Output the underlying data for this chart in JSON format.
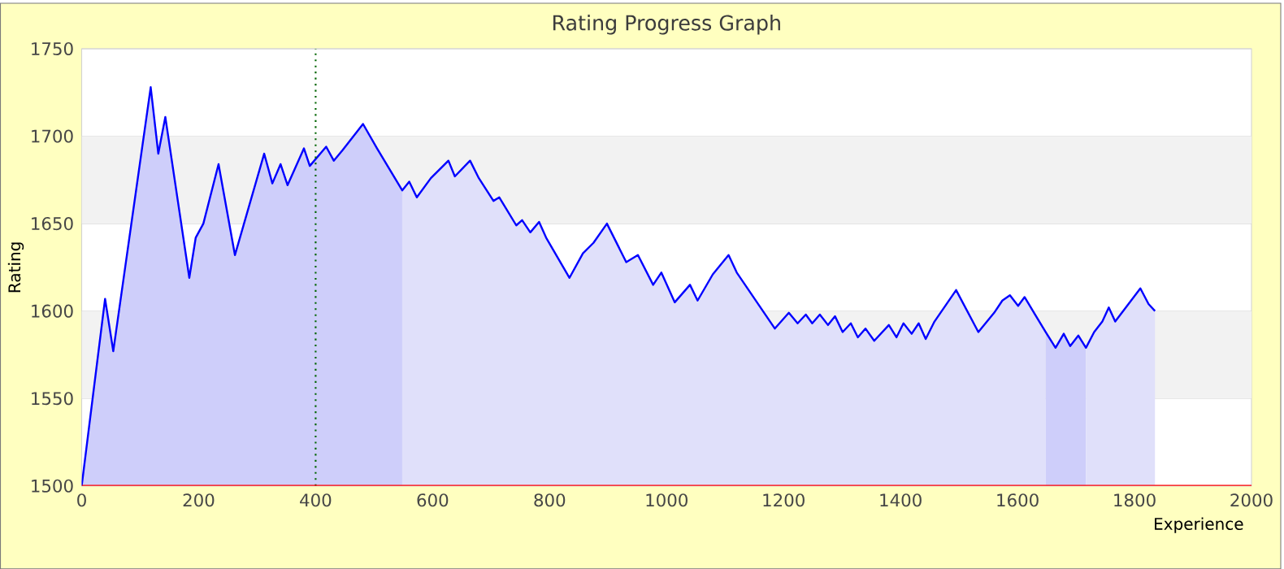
{
  "chart_data": {
    "type": "area",
    "title": "Rating Progress Graph",
    "xlabel": "Experience",
    "ylabel": "Rating",
    "series": [
      {
        "color": "#cecefa",
        "x": [
          0,
          40,
          54,
          118,
          131,
          143,
          184,
          195,
          208,
          234,
          262,
          312,
          326,
          340,
          352,
          380,
          390,
          418,
          431,
          446,
          481,
          505,
          548
        ],
        "values": [
          1500,
          1607,
          1577,
          1728,
          1690,
          1711,
          1619,
          1642,
          1650,
          1684,
          1632,
          1690,
          1673,
          1684,
          1672,
          1693,
          1683,
          1694,
          1686,
          1692,
          1707,
          1693,
          1669
        ]
      },
      {
        "color": "#e0e0fa",
        "x": [
          548,
          560,
          573,
          597,
          627,
          638,
          664,
          679,
          704,
          714,
          743,
          753,
          767,
          782,
          794,
          834,
          857,
          875,
          898,
          931,
          951,
          977,
          991,
          1014,
          1040,
          1053,
          1079,
          1106,
          1120,
          1185,
          1209,
          1224,
          1238,
          1249,
          1262,
          1276,
          1288,
          1301,
          1315,
          1327,
          1340,
          1355,
          1380,
          1393,
          1405,
          1419,
          1431,
          1443,
          1458,
          1495,
          1533,
          1560,
          1574,
          1587,
          1601,
          1612,
          1648
        ],
        "values": [
          1669,
          1674,
          1665,
          1676,
          1686,
          1677,
          1686,
          1676,
          1663,
          1665,
          1649,
          1652,
          1645,
          1651,
          1642,
          1619,
          1633,
          1639,
          1650,
          1628,
          1632,
          1615,
          1622,
          1605,
          1615,
          1606,
          1621,
          1632,
          1622,
          1590,
          1599,
          1593,
          1598,
          1593,
          1598,
          1592,
          1597,
          1588,
          1593,
          1585,
          1590,
          1583,
          1592,
          1585,
          1593,
          1587,
          1593,
          1584,
          1594,
          1612,
          1588,
          1599,
          1606,
          1609,
          1603,
          1608,
          1588
        ]
      },
      {
        "color": "#cecefa",
        "x": [
          1648,
          1665,
          1679,
          1690,
          1704,
          1717
        ],
        "values": [
          1588,
          1579,
          1587,
          1580,
          1586,
          1579
        ]
      },
      {
        "color": "#e0e0fa",
        "x": [
          1717,
          1731,
          1745,
          1756,
          1767,
          1810,
          1824,
          1835
        ],
        "values": [
          1579,
          1588,
          1594,
          1602,
          1594,
          1613,
          1604,
          1600
        ]
      },
      {
        "type": "line",
        "color": "#0000ff",
        "x": [
          0,
          40,
          54,
          118,
          131,
          143,
          184,
          195,
          208,
          234,
          262,
          312,
          326,
          340,
          352,
          380,
          390,
          418,
          431,
          446,
          481,
          505,
          548,
          560,
          573,
          597,
          627,
          638,
          664,
          679,
          704,
          714,
          743,
          753,
          767,
          782,
          794,
          834,
          857,
          875,
          898,
          931,
          951,
          977,
          991,
          1014,
          1040,
          1053,
          1079,
          1106,
          1120,
          1185,
          1209,
          1224,
          1238,
          1249,
          1262,
          1276,
          1288,
          1301,
          1315,
          1327,
          1340,
          1355,
          1380,
          1393,
          1405,
          1419,
          1431,
          1443,
          1458,
          1495,
          1533,
          1560,
          1574,
          1587,
          1601,
          1612,
          1648,
          1665,
          1679,
          1690,
          1704,
          1717,
          1731,
          1745,
          1756,
          1767,
          1810,
          1824,
          1835
        ],
        "values": [
          1500,
          1607,
          1577,
          1728,
          1690,
          1711,
          1619,
          1642,
          1650,
          1684,
          1632,
          1690,
          1673,
          1684,
          1672,
          1693,
          1683,
          1694,
          1686,
          1692,
          1707,
          1693,
          1669,
          1674,
          1665,
          1676,
          1686,
          1677,
          1686,
          1676,
          1663,
          1665,
          1649,
          1652,
          1645,
          1651,
          1642,
          1619,
          1633,
          1639,
          1650,
          1628,
          1632,
          1615,
          1622,
          1605,
          1615,
          1606,
          1621,
          1632,
          1622,
          1590,
          1599,
          1593,
          1598,
          1593,
          1598,
          1592,
          1597,
          1588,
          1593,
          1585,
          1590,
          1583,
          1592,
          1585,
          1593,
          1587,
          1593,
          1584,
          1594,
          1612,
          1588,
          1599,
          1606,
          1609,
          1603,
          1608,
          1588,
          1579,
          1587,
          1580,
          1586,
          1579,
          1588,
          1594,
          1602,
          1594,
          1613,
          1604,
          1600
        ]
      }
    ],
    "xlim": [
      0,
      2000
    ],
    "ylim": [
      1500,
      1750
    ],
    "xticks": [
      0,
      200,
      400,
      600,
      800,
      1000,
      1200,
      1400,
      1600,
      1800,
      2000
    ],
    "yticks": [
      1500,
      1550,
      1600,
      1650,
      1700,
      1750
    ],
    "grid": "y",
    "bands": [
      {
        "axis": "y",
        "from": 1550,
        "to": 1600,
        "color": "#f2f2f2"
      },
      {
        "axis": "y",
        "from": 1650,
        "to": 1700,
        "color": "#f2f2f2"
      }
    ],
    "ref_lines": [
      {
        "axis": "x",
        "value": 400,
        "color": "#006400",
        "line_style": "dotted"
      }
    ]
  }
}
